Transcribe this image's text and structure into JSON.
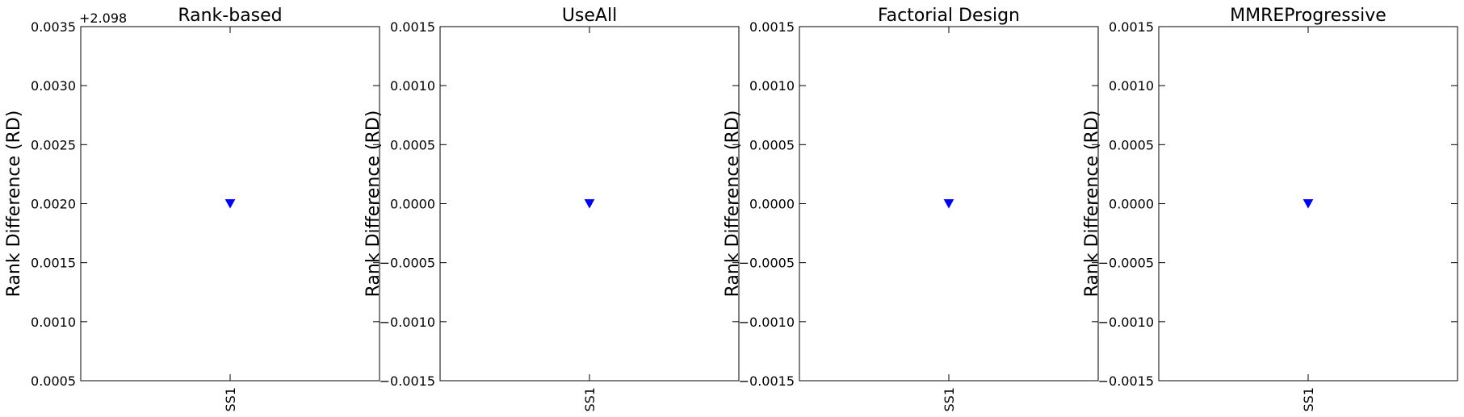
{
  "chart_data": [
    {
      "type": "scatter",
      "title": "Rank-based",
      "ylabel": "Rank Difference (RD)",
      "xlabel": "",
      "categories": [
        "SS1"
      ],
      "y_offset_label": "+2.098",
      "ylim": [
        0.0005,
        0.0035
      ],
      "yticks": [
        0.0005,
        0.001,
        0.0015,
        0.002,
        0.0025,
        0.003,
        0.0035
      ],
      "yticklabels": [
        "0.0005",
        "0.0010",
        "0.0015",
        "0.0020",
        "0.0025",
        "0.0030",
        "0.0035"
      ],
      "series": [
        {
          "values": [
            0.002
          ],
          "marker": "triangle-down",
          "color": "#0000ff"
        }
      ],
      "grid": false
    },
    {
      "type": "scatter",
      "title": "UseAll",
      "ylabel": "Rank Difference (RD)",
      "xlabel": "",
      "categories": [
        "SS1"
      ],
      "y_offset_label": "",
      "ylim": [
        -0.0015,
        0.0015
      ],
      "yticks": [
        -0.0015,
        -0.001,
        -0.0005,
        0.0,
        0.0005,
        0.001,
        0.0015
      ],
      "yticklabels": [
        "−0.0015",
        "−0.0010",
        "−0.0005",
        "0.0000",
        "0.0005",
        "0.0010",
        "0.0015"
      ],
      "series": [
        {
          "values": [
            0.0
          ],
          "marker": "triangle-down",
          "color": "#0000ff"
        }
      ],
      "grid": false
    },
    {
      "type": "scatter",
      "title": "Factorial Design",
      "ylabel": "Rank Difference (RD)",
      "xlabel": "",
      "categories": [
        "SS1"
      ],
      "y_offset_label": "",
      "ylim": [
        -0.0015,
        0.0015
      ],
      "yticks": [
        -0.0015,
        -0.001,
        -0.0005,
        0.0,
        0.0005,
        0.001,
        0.0015
      ],
      "yticklabels": [
        "−0.0015",
        "−0.0010",
        "−0.0005",
        "0.0000",
        "0.0005",
        "0.0010",
        "0.0015"
      ],
      "series": [
        {
          "values": [
            0.0
          ],
          "marker": "triangle-down",
          "color": "#0000ff"
        }
      ],
      "grid": false
    },
    {
      "type": "scatter",
      "title": "MMREProgressive",
      "ylabel": "Rank Difference (RD)",
      "xlabel": "",
      "categories": [
        "SS1"
      ],
      "y_offset_label": "",
      "ylim": [
        -0.0015,
        0.0015
      ],
      "yticks": [
        -0.0015,
        -0.001,
        -0.0005,
        0.0,
        0.0005,
        0.001,
        0.0015
      ],
      "yticklabels": [
        "−0.0015",
        "−0.0010",
        "−0.0005",
        "0.0000",
        "0.0005",
        "0.0010",
        "0.0015"
      ],
      "series": [
        {
          "values": [
            0.0
          ],
          "marker": "triangle-down",
          "color": "#0000ff"
        }
      ],
      "grid": false
    }
  ]
}
